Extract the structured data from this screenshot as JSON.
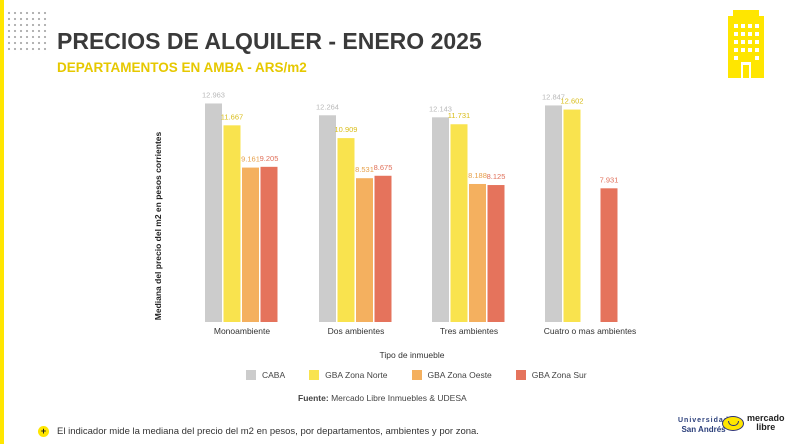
{
  "header": {
    "title_part1": "PRECIOS DE ALQUILER - ",
    "title_part2": "ENERO 2025",
    "subtitle": "DEPARTAMENTOS EN AMBA - ARS/m2"
  },
  "colors": {
    "accent_yellow": "#ffe600",
    "CABA": "#cccccc",
    "GBA Zona Norte": "#f9e34e",
    "GBA Zona Oeste": "#f4b05f",
    "GBA Zona Sur": "#e5735c"
  },
  "chart_data": {
    "type": "bar",
    "categories": [
      "Monoambiente",
      "Dos ambientes",
      "Tres ambientes",
      "Cuatro o mas ambientes"
    ],
    "series": [
      {
        "name": "CABA",
        "values": [
          12963,
          12264,
          12143,
          12847
        ],
        "labels": [
          "12.963",
          "12.264",
          "12.143",
          "12.847"
        ]
      },
      {
        "name": "GBA Zona Norte",
        "values": [
          11667,
          10909,
          11731,
          12602
        ],
        "labels": [
          "11.667",
          "10.909",
          "11.731",
          "12.602"
        ]
      },
      {
        "name": "GBA Zona Oeste",
        "values": [
          9161,
          8531,
          8188,
          null
        ],
        "labels": [
          "9.161",
          "8.531",
          "8.188",
          ""
        ]
      },
      {
        "name": "GBA Zona Sur",
        "values": [
          9205,
          8675,
          8125,
          7931
        ],
        "labels": [
          "9.205",
          "8.675",
          "8.125",
          "7.931"
        ]
      }
    ],
    "xlabel": "Tipo de inmueble",
    "ylabel": "Mediana del precio del m2 en pesos corrientes",
    "ylim": [
      0,
      14000
    ],
    "grid": false,
    "legend_position": "bottom"
  },
  "source": {
    "label": "Fuente:",
    "text": " Mercado Libre Inmuebles & UDESA"
  },
  "footnote": "El indicador mide la mediana del precio del m2 en pesos, por departamentos, ambientes y por zona.",
  "logos": {
    "sanandres": "San Andrés",
    "sanandres_top": "Universidad",
    "mercadolibre_1": "mercado",
    "mercadolibre_2": "libre"
  }
}
